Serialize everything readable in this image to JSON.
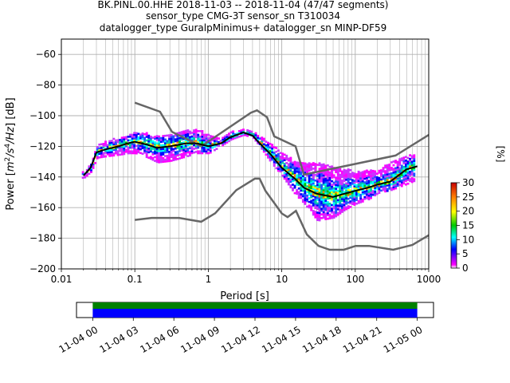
{
  "title_lines": [
    "BK.PINL.00.HHE   2018-11-03 -- 2018-11-04  (47/47 segments)",
    "sensor_type CMG-3T sensor_sn T310034",
    "datalogger_type GuralpMinimus+ datalogger_sn MINP-DF59"
  ],
  "colors": {
    "model_curve": "#666666",
    "mean_curve": "#000000",
    "coverage_top": "#008000",
    "coverage_bottom": "#0000ff",
    "grid": "#b0b0b0"
  },
  "chart_data": [
    {
      "type": "heatmap",
      "xlabel": "Period [s]",
      "ylabel_parts": [
        "Power [",
        "m",
        "2",
        "/s",
        "4",
        "/Hz",
        "] [dB]"
      ],
      "x_scale": "log",
      "xlim": [
        0.01,
        1000
      ],
      "ylim": [
        -200,
        -50
      ],
      "x_tick_labels": [
        "0.01",
        "0.1",
        "1",
        "10",
        "100",
        "1000"
      ],
      "x_tick_values": [
        0.01,
        0.1,
        1,
        10,
        100,
        1000
      ],
      "y_tick_values": [
        -200,
        -180,
        -160,
        -140,
        -120,
        -100,
        -80,
        -60
      ],
      "y_tick_labels": [
        "−200",
        "−180",
        "−160",
        "−140",
        "−120",
        "−100",
        "−80",
        "−60"
      ],
      "grid": true,
      "colorbar": {
        "label": "[%]",
        "range": [
          0,
          30
        ],
        "ticks": [
          "0",
          "5",
          "10",
          "15",
          "20",
          "25",
          "30"
        ],
        "tick_values": [
          0,
          5,
          10,
          15,
          20,
          25,
          30
        ]
      },
      "high_noise_model": {
        "name": "NHNM",
        "x": [
          0.1,
          0.22,
          0.32,
          0.8,
          3.8,
          4.6,
          6.3,
          7.9,
          15.4,
          20,
          354,
          1000
        ],
        "y": [
          -91.5,
          -97.4,
          -110.5,
          -120,
          -98,
          -96.5,
          -101,
          -113.5,
          -120,
          -138.5,
          -126,
          -112.5
        ]
      },
      "low_noise_model": {
        "name": "NLNM",
        "x": [
          0.1,
          0.17,
          0.4,
          0.8,
          1.24,
          2.4,
          4.3,
          5,
          6,
          10,
          12,
          15.6,
          21.9,
          31.6,
          45,
          70,
          101,
          154,
          328,
          600,
          1000
        ],
        "y": [
          -168,
          -166.7,
          -166.7,
          -169.2,
          -163.7,
          -148.6,
          -141.1,
          -141.1,
          -149,
          -163.8,
          -166.2,
          -162.1,
          -177.5,
          -185,
          -187.5,
          -187.5,
          -185,
          -185,
          -187.5,
          -184.4,
          -178
        ]
      },
      "mean_curve": {
        "x": [
          0.02,
          0.025,
          0.03,
          0.04,
          0.06,
          0.08,
          0.1,
          0.15,
          0.2,
          0.3,
          0.5,
          0.7,
          1.0,
          1.5,
          2.0,
          3.0,
          4.0,
          5.0,
          7.0,
          10.0,
          15.0,
          20.0,
          30.0,
          50.0,
          70.0,
          100.0,
          150.0,
          200.0,
          300.0,
          500.0,
          700.0
        ],
        "y": [
          -139,
          -134,
          -124,
          -122,
          -120,
          -118,
          -117,
          -119,
          -121,
          -120,
          -118,
          -118,
          -120,
          -118,
          -114,
          -111,
          -113,
          -118,
          -125,
          -134,
          -141,
          -147,
          -151,
          -153,
          -151,
          -149,
          -147,
          -145,
          -143,
          -135,
          -133
        ]
      },
      "psd_spread": {
        "x": [
          0.02,
          0.025,
          0.03,
          0.04,
          0.06,
          0.08,
          0.1,
          0.15,
          0.2,
          0.3,
          0.5,
          0.7,
          1.0,
          1.5,
          2.0,
          3.0,
          4.0,
          5.0,
          7.0,
          10.0,
          15.0,
          20.0,
          30.0,
          50.0,
          70.0,
          100.0,
          150.0,
          200.0,
          300.0,
          500.0,
          700.0
        ],
        "lower": [
          -141,
          -137,
          -128,
          -127,
          -126,
          -125,
          -125,
          -128,
          -131,
          -130,
          -127,
          -125,
          -125,
          -120,
          -116,
          -113,
          -115,
          -121,
          -131,
          -140,
          -152,
          -158,
          -169,
          -167,
          -162,
          -158,
          -155,
          -151,
          -149,
          -145,
          -142
        ],
        "upper": [
          -137,
          -131,
          -120,
          -117,
          -114,
          -113,
          -111,
          -112,
          -114,
          -112,
          -110,
          -109,
          -113,
          -115,
          -111,
          -109,
          -111,
          -114,
          -119,
          -125,
          -130,
          -131,
          -131,
          -134,
          -135,
          -137,
          -136,
          -135,
          -131,
          -126,
          -126
        ]
      }
    },
    {
      "type": "coverage",
      "x_tick_labels": [
        "11-04 00",
        "11-04 03",
        "11-04 06",
        "11-04 09",
        "11-04 12",
        "11-04 15",
        "11-04 18",
        "11-04 21",
        "11-05 00"
      ],
      "x_tick_values": [
        0,
        3,
        6,
        9,
        12,
        15,
        18,
        21,
        24
      ],
      "xlim_hours": [
        -1.2,
        25.2
      ],
      "data_span_hours": [
        0,
        24
      ]
    }
  ]
}
